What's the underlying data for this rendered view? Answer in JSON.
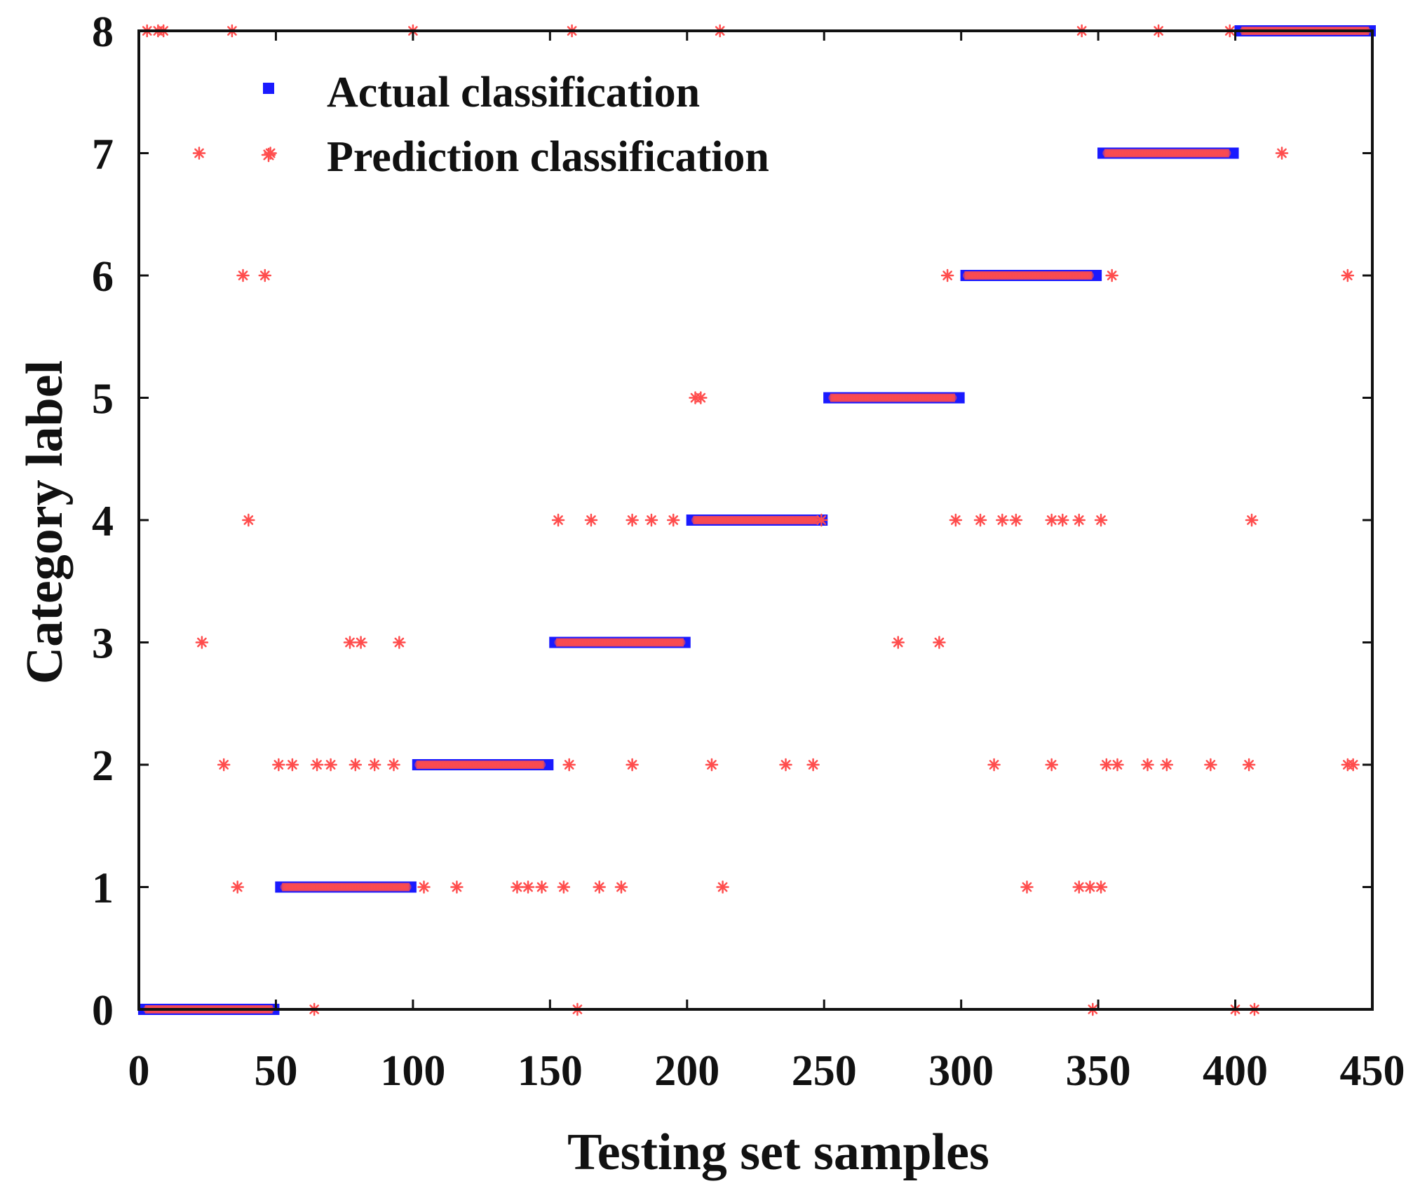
{
  "chart_data": {
    "type": "scatter",
    "title": "",
    "xlabel": "Testing set samples",
    "ylabel": "Category label",
    "xlim": [
      0,
      450
    ],
    "ylim": [
      0,
      8
    ],
    "xticks": [
      0,
      50,
      100,
      150,
      200,
      250,
      300,
      350,
      400,
      450
    ],
    "yticks": [
      0,
      1,
      2,
      3,
      4,
      5,
      6,
      7,
      8
    ],
    "grid": false,
    "legend_position": "top-left",
    "colors": {
      "actual": "#1a1aff",
      "prediction": "#ff4d4d",
      "axis": "#111111"
    },
    "series": [
      {
        "name": "Actual classification",
        "marker": "square",
        "segments": [
          {
            "label": 0,
            "from": 1,
            "to": 50
          },
          {
            "label": 1,
            "from": 51,
            "to": 100
          },
          {
            "label": 2,
            "from": 101,
            "to": 150
          },
          {
            "label": 3,
            "from": 151,
            "to": 200
          },
          {
            "label": 4,
            "from": 201,
            "to": 250
          },
          {
            "label": 5,
            "from": 251,
            "to": 300
          },
          {
            "label": 6,
            "from": 301,
            "to": 350
          },
          {
            "label": 7,
            "from": 351,
            "to": 400
          },
          {
            "label": 8,
            "from": 401,
            "to": 450
          }
        ]
      },
      {
        "name": "Prediction classification",
        "marker": "asterisk",
        "points": [
          [
            3,
            8
          ],
          [
            7,
            8
          ],
          [
            9,
            8
          ],
          [
            34,
            8
          ],
          [
            100,
            8
          ],
          [
            158,
            8
          ],
          [
            212,
            8
          ],
          [
            344,
            8
          ],
          [
            372,
            8
          ],
          [
            398,
            8
          ],
          [
            22,
            7
          ],
          [
            48,
            7
          ],
          [
            417,
            7
          ],
          [
            38,
            6
          ],
          [
            46,
            6
          ],
          [
            295,
            6
          ],
          [
            355,
            6
          ],
          [
            441,
            6
          ],
          [
            203,
            5
          ],
          [
            205,
            5
          ],
          [
            40,
            4
          ],
          [
            153,
            4
          ],
          [
            165,
            4
          ],
          [
            180,
            4
          ],
          [
            187,
            4
          ],
          [
            195,
            4
          ],
          [
            249,
            4
          ],
          [
            298,
            4
          ],
          [
            307,
            4
          ],
          [
            315,
            4
          ],
          [
            320,
            4
          ],
          [
            333,
            4
          ],
          [
            337,
            4
          ],
          [
            343,
            4
          ],
          [
            351,
            4
          ],
          [
            406,
            4
          ],
          [
            23,
            3
          ],
          [
            77,
            3
          ],
          [
            81,
            3
          ],
          [
            95,
            3
          ],
          [
            277,
            3
          ],
          [
            292,
            3
          ],
          [
            31,
            2
          ],
          [
            51,
            2
          ],
          [
            56,
            2
          ],
          [
            65,
            2
          ],
          [
            70,
            2
          ],
          [
            79,
            2
          ],
          [
            86,
            2
          ],
          [
            93,
            2
          ],
          [
            157,
            2
          ],
          [
            180,
            2
          ],
          [
            209,
            2
          ],
          [
            236,
            2
          ],
          [
            246,
            2
          ],
          [
            312,
            2
          ],
          [
            333,
            2
          ],
          [
            353,
            2
          ],
          [
            357,
            2
          ],
          [
            368,
            2
          ],
          [
            375,
            2
          ],
          [
            391,
            2
          ],
          [
            405,
            2
          ],
          [
            441,
            2
          ],
          [
            443,
            2
          ],
          [
            36,
            1
          ],
          [
            104,
            1
          ],
          [
            116,
            1
          ],
          [
            138,
            1
          ],
          [
            142,
            1
          ],
          [
            147,
            1
          ],
          [
            155,
            1
          ],
          [
            168,
            1
          ],
          [
            176,
            1
          ],
          [
            213,
            1
          ],
          [
            324,
            1
          ],
          [
            343,
            1
          ],
          [
            347,
            1
          ],
          [
            351,
            1
          ],
          [
            64,
            0
          ],
          [
            160,
            0
          ],
          [
            348,
            0
          ],
          [
            400,
            0
          ],
          [
            407,
            0
          ]
        ],
        "correct_segments": [
          {
            "label": 0,
            "from": 3,
            "to": 48
          },
          {
            "label": 1,
            "from": 53,
            "to": 98
          },
          {
            "label": 2,
            "from": 102,
            "to": 147
          },
          {
            "label": 3,
            "from": 153,
            "to": 198
          },
          {
            "label": 4,
            "from": 203,
            "to": 247
          },
          {
            "label": 5,
            "from": 253,
            "to": 297
          },
          {
            "label": 6,
            "from": 302,
            "to": 347
          },
          {
            "label": 7,
            "from": 353,
            "to": 397
          },
          {
            "label": 8,
            "from": 403,
            "to": 448
          }
        ]
      }
    ]
  }
}
